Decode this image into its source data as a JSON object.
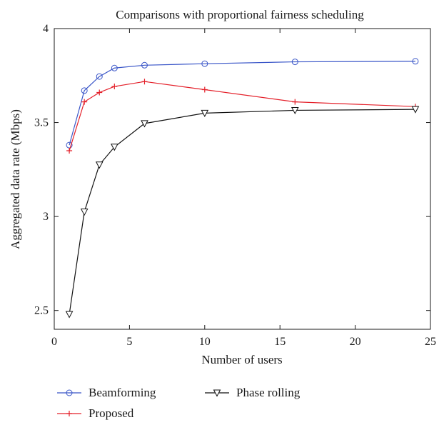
{
  "chart_data": {
    "type": "line",
    "title": "Comparisons with proportional fairness scheduling",
    "xlabel": "Number of users",
    "ylabel": "Aggregated data rate (Mbps)",
    "xlim": [
      0,
      25
    ],
    "ylim": [
      2.4,
      4.0
    ],
    "xticks": [
      0,
      5,
      10,
      15,
      20,
      25
    ],
    "yticks": [
      2.5,
      3,
      3.5,
      4
    ],
    "xtick_labels": [
      "0",
      "5",
      "10",
      "15",
      "20",
      "25"
    ],
    "ytick_labels": [
      "2.5",
      "3",
      "3.5",
      "4"
    ],
    "grid": false,
    "legend_position": "bottom-outside",
    "x": [
      1,
      2,
      3,
      4,
      6,
      10,
      16,
      24
    ],
    "series": [
      {
        "name": "Beamforming",
        "color": "#3a56c8",
        "marker": "circle",
        "values": [
          3.38,
          3.67,
          3.745,
          3.79,
          3.805,
          3.813,
          3.823,
          3.826
        ]
      },
      {
        "name": "Proposed",
        "color": "#e4202a",
        "marker": "plus",
        "values": [
          3.35,
          3.61,
          3.66,
          3.692,
          3.718,
          3.675,
          3.61,
          3.585
        ]
      },
      {
        "name": "Phase rolling",
        "color": "#111111",
        "marker": "triangle-down",
        "values": [
          2.48,
          3.025,
          3.275,
          3.37,
          3.495,
          3.55,
          3.565,
          3.57
        ]
      }
    ]
  }
}
